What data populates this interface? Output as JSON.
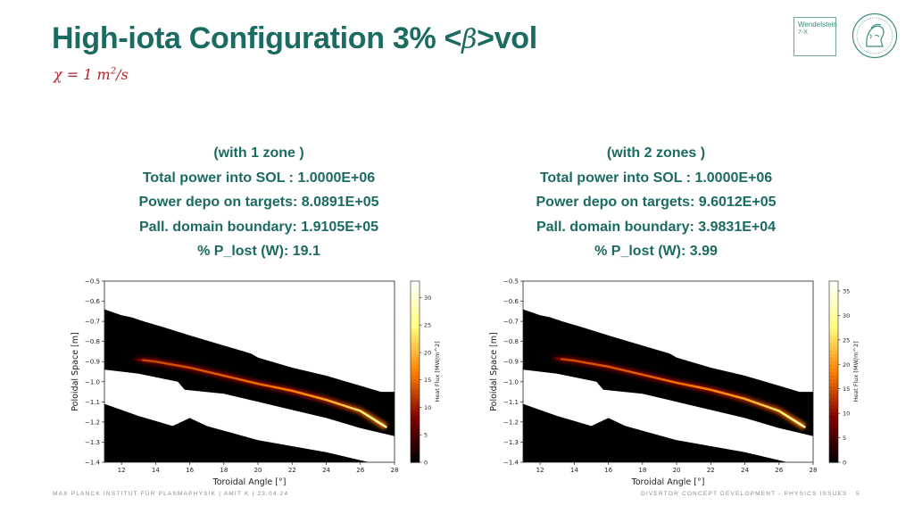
{
  "slide": {
    "title_pre": "High-iota Configuration 3% <",
    "title_beta": "β",
    "title_post": ">vol",
    "subtitle_main": "χ = 1 m",
    "subtitle_sup": "2",
    "subtitle_post": "/s"
  },
  "logos": {
    "w7x_line1": "Wendelstein",
    "w7x_line2": "7-X",
    "brand_color": "#1b6b62"
  },
  "panels": [
    {
      "lines": [
        "(with 1 zone )",
        "Total power into SOL :  1.0000E+06",
        "Power depo on targets:  8.0891E+05",
        "Pall. domain boundary:  1.9105E+05",
        "% P_lost (W):  19.1"
      ]
    },
    {
      "lines": [
        "(with 2 zones )",
        "Total power into SOL :  1.0000E+06",
        "Power depo on targets:  9.6012E+05",
        "Pall. domain boundary:  3.9831E+04",
        "% P_lost (W):  3.99"
      ]
    }
  ],
  "chart_data": [
    {
      "type": "heatmap",
      "xlabel": "Toroidal Angle [°]",
      "ylabel": "Poloidal Space [m]",
      "colorbar_label": "Heat Flux [MW/m^2]",
      "xlim": [
        11,
        28
      ],
      "ylim": [
        -1.4,
        -0.5
      ],
      "x_ticks": [
        12,
        14,
        16,
        18,
        20,
        22,
        24,
        26,
        28
      ],
      "y_ticks": [
        -0.5,
        -0.6,
        -0.7,
        -0.8,
        -0.9,
        -1.0,
        -1.1,
        -1.2,
        -1.3,
        -1.4
      ],
      "colorbar_range": [
        0,
        33
      ],
      "colorbar_ticks": [
        0,
        5,
        10,
        15,
        20,
        25,
        30
      ],
      "colormap": "afmhot",
      "target_upper_edge": [
        [
          11,
          -0.64
        ],
        [
          12,
          -0.67
        ],
        [
          12.6,
          -0.68
        ],
        [
          13.3,
          -0.7
        ],
        [
          14.5,
          -0.73
        ],
        [
          16,
          -0.77
        ],
        [
          18,
          -0.82
        ],
        [
          19.6,
          -0.86
        ],
        [
          20,
          -0.88
        ],
        [
          22,
          -0.93
        ],
        [
          24,
          -0.97
        ],
        [
          26,
          -1.02
        ],
        [
          27.2,
          -1.05
        ],
        [
          28,
          -1.05
        ]
      ],
      "target_lower_edge": [
        [
          11,
          -0.94
        ],
        [
          13,
          -0.96
        ],
        [
          15.3,
          -1.0
        ],
        [
          15.7,
          -1.04
        ],
        [
          18,
          -1.06
        ],
        [
          20,
          -1.1
        ],
        [
          22,
          -1.14
        ],
        [
          24,
          -1.18
        ],
        [
          26,
          -1.23
        ],
        [
          28,
          -1.27
        ]
      ],
      "shadow_upper_edge": [
        [
          11,
          -1.11
        ],
        [
          13,
          -1.17
        ],
        [
          15,
          -1.22
        ],
        [
          16,
          -1.18
        ],
        [
          17,
          -1.22
        ],
        [
          20,
          -1.29
        ],
        [
          24,
          -1.35
        ],
        [
          26.5,
          -1.4
        ]
      ],
      "strike_line": [
        [
          12.5,
          -0.885
        ],
        [
          14,
          -0.9
        ],
        [
          16,
          -0.93
        ],
        [
          18,
          -0.97
        ],
        [
          20,
          -1.01
        ],
        [
          22,
          -1.045
        ],
        [
          24,
          -1.09
        ],
        [
          26,
          -1.145
        ],
        [
          27.5,
          -1.225
        ]
      ],
      "strike_peak": 30
    },
    {
      "type": "heatmap",
      "xlabel": "Toroidal Angle [°]",
      "ylabel": "Poloidal Space [m]",
      "colorbar_label": "Heat Flux [MW/m^2]",
      "xlim": [
        11,
        28
      ],
      "ylim": [
        -1.4,
        -0.5
      ],
      "x_ticks": [
        12,
        14,
        16,
        18,
        20,
        22,
        24,
        26,
        28
      ],
      "y_ticks": [
        -0.5,
        -0.6,
        -0.7,
        -0.8,
        -0.9,
        -1.0,
        -1.1,
        -1.2,
        -1.3,
        -1.4
      ],
      "colorbar_range": [
        0,
        37
      ],
      "colorbar_ticks": [
        0,
        5,
        10,
        15,
        20,
        25,
        30,
        35
      ],
      "colormap": "afmhot",
      "target_upper_edge": [
        [
          11,
          -0.64
        ],
        [
          12,
          -0.67
        ],
        [
          12.6,
          -0.68
        ],
        [
          13.3,
          -0.7
        ],
        [
          14.5,
          -0.73
        ],
        [
          16,
          -0.77
        ],
        [
          18,
          -0.82
        ],
        [
          19.6,
          -0.86
        ],
        [
          20,
          -0.88
        ],
        [
          22,
          -0.93
        ],
        [
          24,
          -0.97
        ],
        [
          26,
          -1.02
        ],
        [
          27.2,
          -1.05
        ],
        [
          28,
          -1.05
        ]
      ],
      "target_lower_edge": [
        [
          11,
          -0.94
        ],
        [
          13,
          -0.96
        ],
        [
          15.3,
          -1.0
        ],
        [
          15.7,
          -1.04
        ],
        [
          18,
          -1.06
        ],
        [
          20,
          -1.1
        ],
        [
          22,
          -1.14
        ],
        [
          24,
          -1.18
        ],
        [
          26,
          -1.23
        ],
        [
          28,
          -1.27
        ]
      ],
      "shadow_upper_edge": [
        [
          11,
          -1.11
        ],
        [
          13,
          -1.17
        ],
        [
          15,
          -1.22
        ],
        [
          16,
          -1.18
        ],
        [
          17,
          -1.22
        ],
        [
          20,
          -1.29
        ],
        [
          24,
          -1.35
        ],
        [
          26.5,
          -1.4
        ]
      ],
      "strike_line": [
        [
          12.5,
          -0.88
        ],
        [
          14,
          -0.895
        ],
        [
          16,
          -0.925
        ],
        [
          18,
          -0.965
        ],
        [
          20,
          -1.005
        ],
        [
          22,
          -1.04
        ],
        [
          24,
          -1.085
        ],
        [
          26,
          -1.145
        ],
        [
          27.5,
          -1.225
        ]
      ],
      "strike_peak": 34
    }
  ],
  "footer": {
    "left": "MAX PLANCK INSTITUT FÜR PLASMAPHYSIK | AMIT K | 23.04.24",
    "right": "DIVERTOR CONCEPT DEVELOPMENT - PHYSICS ISSUES",
    "page": "5"
  }
}
